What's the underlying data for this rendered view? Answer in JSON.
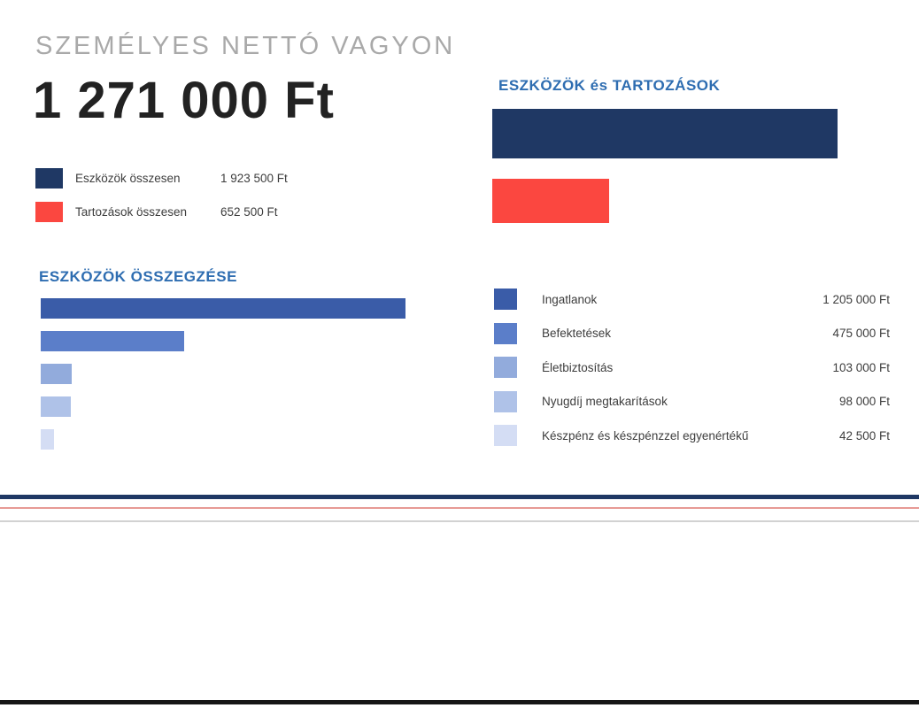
{
  "page": {
    "title": "SZEMÉLYES NETTÓ VAGYON",
    "net_worth": "1 271 000 Ft"
  },
  "summary_legend": [
    {
      "icon": "assets-swatch",
      "label": "Eszközök összesen",
      "value": "1 923 500 Ft",
      "color": "#1F3864"
    },
    {
      "icon": "liabilities-swatch",
      "label": "Tartozások összesen",
      "value": "652 500 Ft",
      "color": "#FB4740"
    }
  ],
  "chart_data": [
    {
      "type": "bar",
      "orientation": "horizontal",
      "title": "ESZKÖZÖK és TARTOZÁSOK",
      "categories": [
        "Eszközök összesen",
        "Tartozások összesen"
      ],
      "values": [
        1923500,
        652500
      ],
      "value_labels": [
        "1 923 500 Ft",
        "652 500 Ft"
      ],
      "colors": [
        "#1F3864",
        "#FB4740"
      ],
      "max": 1923500,
      "axes": "hidden",
      "grid": false,
      "legend_position": "top-left-of-page"
    },
    {
      "type": "bar",
      "orientation": "horizontal",
      "title": "ESZKÖZÖK ÖSSZEGZÉSE",
      "categories": [
        "Ingatlanok",
        "Befektetések",
        "Életbiztosítás",
        "Nyugdíj megtakarítások",
        "Készpénz és készpénzzel egyenértékű"
      ],
      "values": [
        1205000,
        475000,
        103000,
        98000,
        42500
      ],
      "value_labels": [
        "1 205 000 Ft",
        "475 000 Ft",
        "103 000 Ft",
        "98 000 Ft",
        "42 500 Ft"
      ],
      "colors": [
        "#3A5CA8",
        "#5B7EC9",
        "#92ABDC",
        "#AFC2E8",
        "#D4DDF4"
      ],
      "max": 1205000,
      "axes": "hidden",
      "grid": false,
      "legend_position": "right"
    }
  ],
  "colors": {
    "heading_blue": "#2E6DB1",
    "title_gray": "#A9A9A9",
    "net_worth_text": "#222222",
    "divider_navy": "#1F3864",
    "divider_red": "#E79A95"
  }
}
